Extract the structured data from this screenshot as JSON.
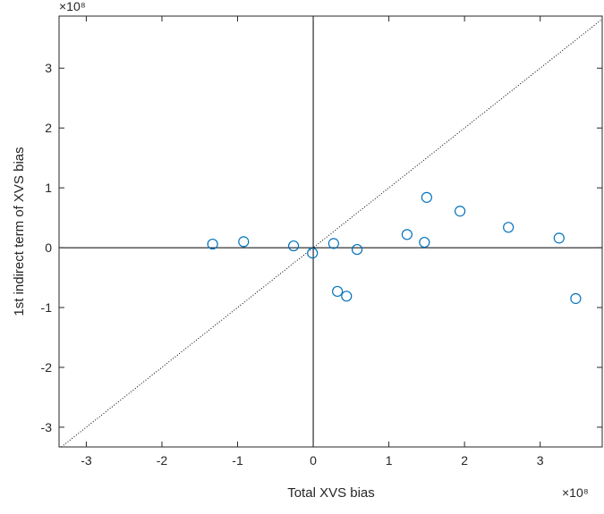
{
  "chart_data": {
    "type": "scatter",
    "x_label": "Total XVS bias",
    "y_label": "1st indirect term of XVS bias",
    "x_exponent": "×10⁸",
    "y_exponent": "×10⁸",
    "color": "#0072bd",
    "xlim": [
      -3.36,
      3.82
    ],
    "ylim": [
      -3.33,
      3.87
    ],
    "xticks": [
      -3,
      -2,
      -1,
      0,
      1,
      2,
      3
    ],
    "yticks": [
      -3,
      -2,
      -1,
      0,
      1,
      2,
      3
    ],
    "x": [
      -1.33,
      -0.92,
      -0.26,
      -0.01,
      0.27,
      0.58,
      0.32,
      0.44,
      1.24,
      1.47,
      1.5,
      1.94,
      2.58,
      3.25,
      3.47
    ],
    "y": [
      0.06,
      0.1,
      0.03,
      -0.09,
      0.07,
      -0.03,
      -0.73,
      -0.81,
      0.22,
      0.09,
      0.84,
      0.61,
      0.34,
      0.16,
      -0.85
    ]
  }
}
